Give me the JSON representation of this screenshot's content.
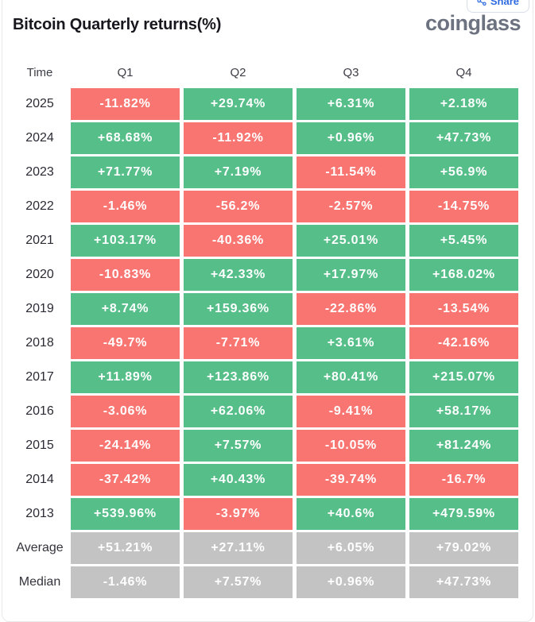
{
  "header": {
    "title": "Bitcoin Quarterly returns(%)",
    "logo": "coinglass",
    "share_label": "Share"
  },
  "colors": {
    "positive": "#55be89",
    "negative": "#f97571",
    "neutral": "#c3c3c3"
  },
  "chart_data": {
    "type": "table",
    "title": "Bitcoin Quarterly returns(%)",
    "columns": [
      "Time",
      "Q1",
      "Q2",
      "Q3",
      "Q4"
    ],
    "rows": [
      {
        "time": "2025",
        "values": [
          "-11.82%",
          "+29.74%",
          "+6.31%",
          "+2.18%"
        ]
      },
      {
        "time": "2024",
        "values": [
          "+68.68%",
          "-11.92%",
          "+0.96%",
          "+47.73%"
        ]
      },
      {
        "time": "2023",
        "values": [
          "+71.77%",
          "+7.19%",
          "-11.54%",
          "+56.9%"
        ]
      },
      {
        "time": "2022",
        "values": [
          "-1.46%",
          "-56.2%",
          "-2.57%",
          "-14.75%"
        ]
      },
      {
        "time": "2021",
        "values": [
          "+103.17%",
          "-40.36%",
          "+25.01%",
          "+5.45%"
        ]
      },
      {
        "time": "2020",
        "values": [
          "-10.83%",
          "+42.33%",
          "+17.97%",
          "+168.02%"
        ]
      },
      {
        "time": "2019",
        "values": [
          "+8.74%",
          "+159.36%",
          "-22.86%",
          "-13.54%"
        ]
      },
      {
        "time": "2018",
        "values": [
          "-49.7%",
          "-7.71%",
          "+3.61%",
          "-42.16%"
        ]
      },
      {
        "time": "2017",
        "values": [
          "+11.89%",
          "+123.86%",
          "+80.41%",
          "+215.07%"
        ]
      },
      {
        "time": "2016",
        "values": [
          "-3.06%",
          "+62.06%",
          "-9.41%",
          "+58.17%"
        ]
      },
      {
        "time": "2015",
        "values": [
          "-24.14%",
          "+7.57%",
          "-10.05%",
          "+81.24%"
        ]
      },
      {
        "time": "2014",
        "values": [
          "-37.42%",
          "+40.43%",
          "-39.74%",
          "-16.7%"
        ]
      },
      {
        "time": "2013",
        "values": [
          "+539.96%",
          "-3.97%",
          "+40.6%",
          "+479.59%"
        ]
      },
      {
        "time": "Average",
        "values": [
          "+51.21%",
          "+27.11%",
          "+6.05%",
          "+79.02%"
        ],
        "neutral": true
      },
      {
        "time": "Median",
        "values": [
          "-1.46%",
          "+7.57%",
          "+0.96%",
          "+47.73%"
        ],
        "neutral": true
      }
    ]
  }
}
